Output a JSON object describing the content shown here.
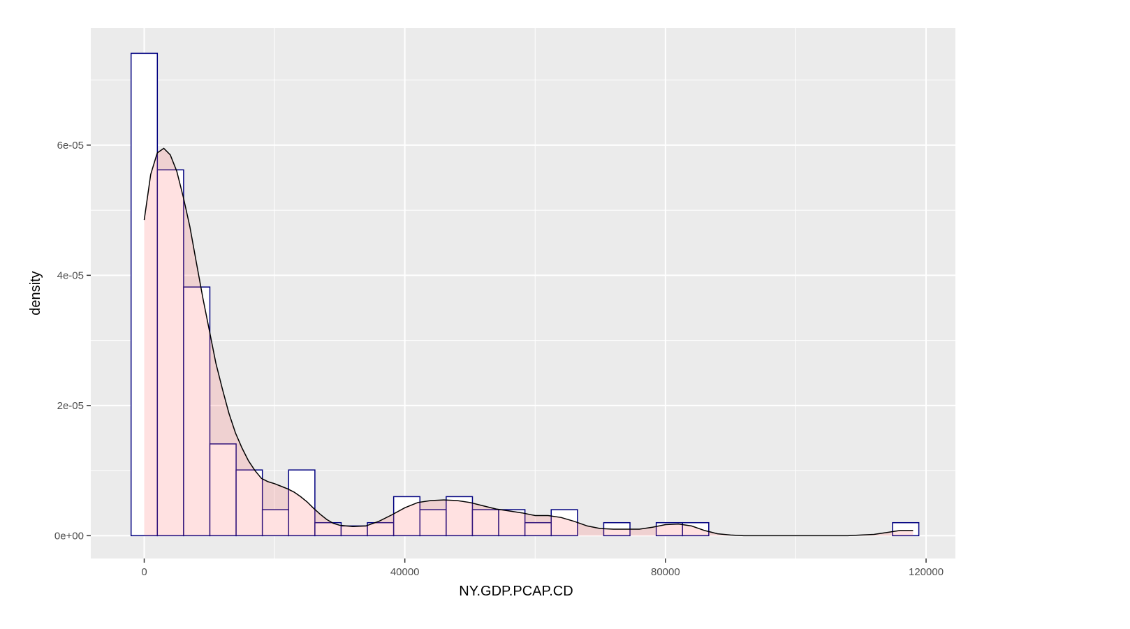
{
  "chart_data": {
    "type": "histogram",
    "xlabel": "NY.GDP.PCAP.CD",
    "ylabel": "density",
    "xlim": [
      -8200,
      124500
    ],
    "ylim": [
      -3.5e-06,
      7.8e-05
    ],
    "x_ticks": [
      {
        "value": 0,
        "label": "0"
      },
      {
        "value": 40000,
        "label": "40000"
      },
      {
        "value": 80000,
        "label": "80000"
      },
      {
        "value": 120000,
        "label": "120000"
      }
    ],
    "y_ticks": [
      {
        "value": 0,
        "label": "0e+00"
      },
      {
        "value": 2e-05,
        "label": "2e-05"
      },
      {
        "value": 4e-05,
        "label": "4e-05"
      },
      {
        "value": 6e-05,
        "label": "6e-05"
      }
    ],
    "bin_width": 4030,
    "bins": [
      {
        "x0": -2015,
        "x1": 2015,
        "density": 7.41e-05
      },
      {
        "x0": 2015,
        "x1": 6045,
        "density": 5.62e-05
      },
      {
        "x0": 6045,
        "x1": 10075,
        "density": 3.82e-05
      },
      {
        "x0": 10075,
        "x1": 14105,
        "density": 1.41e-05
      },
      {
        "x0": 14105,
        "x1": 18135,
        "density": 1.01e-05
      },
      {
        "x0": 18135,
        "x1": 22165,
        "density": 4e-06
      },
      {
        "x0": 22165,
        "x1": 26195,
        "density": 1.01e-05
      },
      {
        "x0": 26195,
        "x1": 30225,
        "density": 2e-06
      },
      {
        "x0": 30225,
        "x1": 34255,
        "density": 1.5e-06
      },
      {
        "x0": 34255,
        "x1": 38285,
        "density": 2e-06
      },
      {
        "x0": 38285,
        "x1": 42315,
        "density": 6e-06
      },
      {
        "x0": 42315,
        "x1": 46345,
        "density": 4e-06
      },
      {
        "x0": 46345,
        "x1": 50375,
        "density": 6e-06
      },
      {
        "x0": 50375,
        "x1": 54405,
        "density": 4e-06
      },
      {
        "x0": 54405,
        "x1": 58435,
        "density": 4e-06
      },
      {
        "x0": 58435,
        "x1": 62465,
        "density": 2e-06
      },
      {
        "x0": 62465,
        "x1": 66495,
        "density": 4e-06
      },
      {
        "x0": 66495,
        "x1": 70525,
        "density": 0
      },
      {
        "x0": 70525,
        "x1": 74555,
        "density": 2e-06
      },
      {
        "x0": 74555,
        "x1": 78585,
        "density": 0
      },
      {
        "x0": 78585,
        "x1": 82615,
        "density": 2e-06
      },
      {
        "x0": 82615,
        "x1": 86645,
        "density": 2e-06
      },
      {
        "x0": 86645,
        "x1": 90675,
        "density": 0
      },
      {
        "x0": 90675,
        "x1": 94705,
        "density": 0
      },
      {
        "x0": 94705,
        "x1": 98735,
        "density": 0
      },
      {
        "x0": 98735,
        "x1": 102765,
        "density": 0
      },
      {
        "x0": 102765,
        "x1": 106795,
        "density": 0
      },
      {
        "x0": 106795,
        "x1": 110825,
        "density": 0
      },
      {
        "x0": 110825,
        "x1": 114855,
        "density": 0
      },
      {
        "x0": 114855,
        "x1": 118885,
        "density": 2e-06
      }
    ],
    "density_curve": [
      [
        0,
        4.85e-05
      ],
      [
        1000,
        5.55e-05
      ],
      [
        2000,
        5.88e-05
      ],
      [
        3000,
        5.95e-05
      ],
      [
        4000,
        5.85e-05
      ],
      [
        5000,
        5.6e-05
      ],
      [
        6000,
        5.2e-05
      ],
      [
        7000,
        4.75e-05
      ],
      [
        8000,
        4.2e-05
      ],
      [
        9000,
        3.65e-05
      ],
      [
        10000,
        3.15e-05
      ],
      [
        11000,
        2.65e-05
      ],
      [
        12000,
        2.25e-05
      ],
      [
        13000,
        1.88e-05
      ],
      [
        14000,
        1.58e-05
      ],
      [
        15000,
        1.35e-05
      ],
      [
        16000,
        1.15e-05
      ],
      [
        17000,
        1e-05
      ],
      [
        18000,
        8.8e-06
      ],
      [
        19000,
        8.3e-06
      ],
      [
        20000,
        8e-06
      ],
      [
        21000,
        7.6e-06
      ],
      [
        22000,
        7.2e-06
      ],
      [
        23000,
        6.7e-06
      ],
      [
        24000,
        6e-06
      ],
      [
        25000,
        5.2e-06
      ],
      [
        26000,
        4.2e-06
      ],
      [
        27000,
        3.3e-06
      ],
      [
        28000,
        2.5e-06
      ],
      [
        29000,
        1.9e-06
      ],
      [
        30000,
        1.6e-06
      ],
      [
        32000,
        1.4e-06
      ],
      [
        34000,
        1.5e-06
      ],
      [
        36000,
        2.2e-06
      ],
      [
        38000,
        3.2e-06
      ],
      [
        40000,
        4.3e-06
      ],
      [
        42000,
        5.1e-06
      ],
      [
        44000,
        5.4e-06
      ],
      [
        46000,
        5.5e-06
      ],
      [
        48000,
        5.4e-06
      ],
      [
        50000,
        5.1e-06
      ],
      [
        52000,
        4.6e-06
      ],
      [
        54000,
        4.1e-06
      ],
      [
        56000,
        3.8e-06
      ],
      [
        58000,
        3.5e-06
      ],
      [
        60000,
        3.1e-06
      ],
      [
        62000,
        3.1e-06
      ],
      [
        64000,
        2.8e-06
      ],
      [
        66000,
        2.2e-06
      ],
      [
        68000,
        1.5e-06
      ],
      [
        70000,
        1.1e-06
      ],
      [
        72000,
        1e-06
      ],
      [
        74000,
        1e-06
      ],
      [
        76000,
        1e-06
      ],
      [
        78000,
        1.3e-06
      ],
      [
        80000,
        1.7e-06
      ],
      [
        82000,
        1.8e-06
      ],
      [
        84000,
        1.5e-06
      ],
      [
        86000,
        8e-07
      ],
      [
        88000,
        3e-07
      ],
      [
        90000,
        1e-07
      ],
      [
        92000,
        0
      ],
      [
        100000,
        0
      ],
      [
        108000,
        0
      ],
      [
        110000,
        1e-07
      ],
      [
        112000,
        2e-07
      ],
      [
        114000,
        5e-07
      ],
      [
        116000,
        8e-07
      ],
      [
        118000,
        8e-07
      ]
    ],
    "colors": {
      "panel_bg": "#ebebeb",
      "grid": "#ffffff",
      "bar_fill": "#ffffff",
      "bar_outline": "#000080",
      "density_fill": "#ff6b6b",
      "density_fill_opacity": 0.2,
      "density_line": "#000000"
    },
    "grid": true,
    "legend": "none"
  }
}
